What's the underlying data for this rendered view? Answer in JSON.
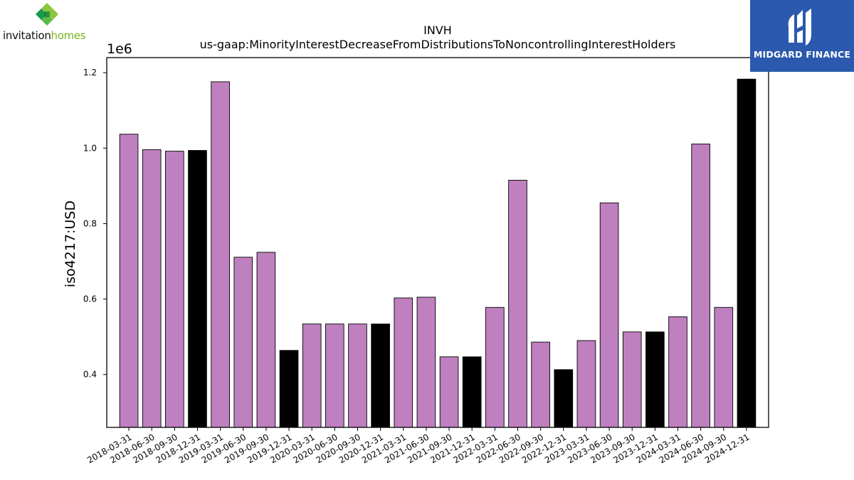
{
  "logos": {
    "left_text_1": "invitation",
    "left_text_2": "homes",
    "right_text": "MIDGARD FINANCE"
  },
  "colors": {
    "bar_default": "#bf80bf",
    "bar_highlight": "#000000",
    "bar_edge": "#000000",
    "axis": "#000000",
    "brand_blue": "#2b59ad",
    "brand_green": "#7ab51d"
  },
  "chart_data": {
    "type": "bar",
    "title": "INVH",
    "subtitle": "us-gaap:MinorityInterestDecreaseFromDistributionsToNoncontrollingInterestHolders",
    "xlabel": "",
    "ylabel": "iso4217:USD",
    "y_scale_label": "1e6",
    "ylim": [
      0.26,
      1.24
    ],
    "yticks": [
      0.4,
      0.6,
      0.8,
      1.0,
      1.2
    ],
    "ytick_labels": [
      "0.4",
      "0.6",
      "0.8",
      "1.0",
      "1.2"
    ],
    "grid": false,
    "categories": [
      "2018-03-31",
      "2018-06-30",
      "2018-09-30",
      "2018-12-31",
      "2019-03-31",
      "2019-06-30",
      "2019-09-30",
      "2019-12-31",
      "2020-03-31",
      "2020-06-30",
      "2020-09-30",
      "2020-12-31",
      "2021-03-31",
      "2021-06-30",
      "2021-09-30",
      "2021-12-31",
      "2022-03-31",
      "2022-06-30",
      "2022-09-30",
      "2022-12-31",
      "2023-03-31",
      "2023-06-30",
      "2023-09-30",
      "2023-12-31",
      "2024-03-31",
      "2024-06-30",
      "2024-09-30",
      "2024-12-31"
    ],
    "values": [
      1.037,
      0.996,
      0.992,
      0.994,
      1.176,
      0.711,
      0.724,
      0.464,
      0.534,
      0.534,
      0.534,
      0.534,
      0.603,
      0.605,
      0.447,
      0.447,
      0.578,
      0.915,
      0.486,
      0.413,
      0.49,
      0.855,
      0.513,
      0.513,
      0.553,
      1.011,
      0.578,
      1.183
    ],
    "highlight": [
      false,
      false,
      false,
      true,
      false,
      false,
      false,
      true,
      false,
      false,
      false,
      true,
      false,
      false,
      false,
      true,
      false,
      false,
      false,
      true,
      false,
      false,
      false,
      true,
      false,
      false,
      false,
      true
    ]
  }
}
